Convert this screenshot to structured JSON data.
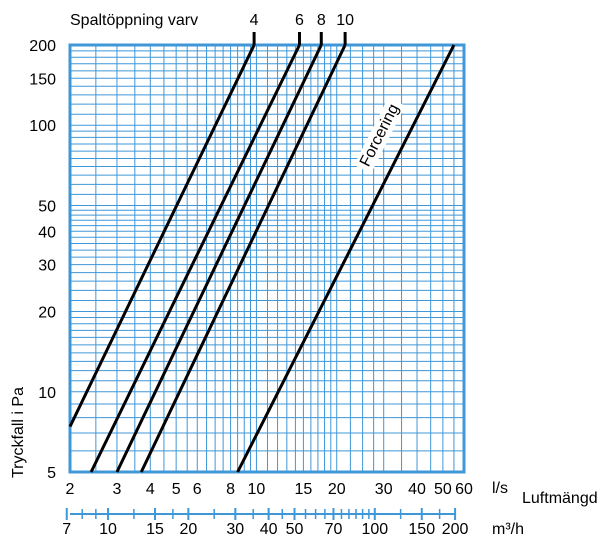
{
  "chart_data": {
    "type": "line",
    "log_x": true,
    "log_y": true,
    "xlim": [
      2,
      60
    ],
    "ylim": [
      5,
      200
    ],
    "grid": true,
    "header_label": "Spaltöppning varv",
    "ylabel": "Tryckfall i Pa",
    "xlabel": "Luftmängd",
    "x_unit": "l/s",
    "x2_unit": "m³/h",
    "x_tick_labels": [
      "2",
      "3",
      "4",
      "5",
      "6",
      "8",
      "10",
      "15",
      "20",
      "30",
      "40",
      "50",
      "60"
    ],
    "x_ticks": [
      2,
      3,
      4,
      5,
      6,
      8,
      10,
      15,
      20,
      30,
      40,
      50,
      60
    ],
    "x2_tick_labels": [
      "7",
      "10",
      "15",
      "20",
      "30",
      "40",
      "50",
      "70",
      "100",
      "150",
      "200"
    ],
    "x2_ticks": [
      7,
      10,
      15,
      20,
      30,
      40,
      50,
      70,
      100,
      150,
      200
    ],
    "y_tick_labels": [
      "5",
      "10",
      "20",
      "30",
      "40",
      "50",
      "100",
      "150",
      "200"
    ],
    "y_ticks": [
      5,
      10,
      20,
      30,
      40,
      50,
      100,
      150,
      200
    ],
    "series": [
      {
        "name": "4",
        "points": [
          [
            2.0,
            7.4
          ],
          [
            9.8,
            200
          ]
        ]
      },
      {
        "name": "6",
        "points": [
          [
            2.4,
            5
          ],
          [
            14.5,
            200
          ]
        ]
      },
      {
        "name": "8",
        "points": [
          [
            3.0,
            5
          ],
          [
            17.5,
            200
          ]
        ]
      },
      {
        "name": "10",
        "points": [
          [
            3.7,
            5
          ],
          [
            21.5,
            200
          ]
        ]
      },
      {
        "name": "Forcering",
        "points": [
          [
            8.5,
            5
          ],
          [
            55.0,
            200
          ]
        ]
      }
    ],
    "annotations": [
      {
        "text": "Forcering",
        "x": 30,
        "y": 90
      }
    ],
    "line_color": "#000000",
    "grid_color": "#3f97d8"
  }
}
